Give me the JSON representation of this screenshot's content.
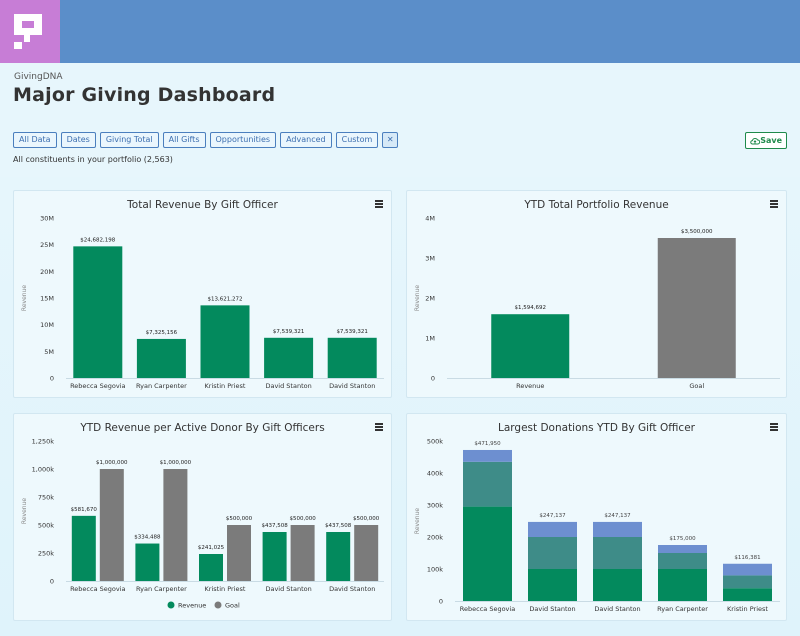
{
  "header": {
    "brand": "GivingDNA",
    "title": "Major Giving Dashboard",
    "filters": [
      "All Data",
      "Dates",
      "Giving Total",
      "All Gifts",
      "Opportunities",
      "Advanced",
      "Custom"
    ],
    "clear_label": "✕",
    "save_label": "Save",
    "subtitle": "All constituents in your portfolio (2,563)"
  },
  "colors": {
    "green": "#038a5d",
    "gray": "#7b7b7b",
    "blue": "#6d8fd0",
    "teal": "#3e8c88"
  },
  "chart_data": [
    {
      "type": "bar",
      "title": "Total Revenue By Gift Officer",
      "ylabel": "Revenue",
      "categories": [
        "Rebecca Segovia",
        "Ryan Carpenter",
        "Kristin Priest",
        "David Stanton",
        "David Stanton"
      ],
      "values": [
        24682198,
        7325156,
        13621272,
        7539321,
        7539321
      ],
      "data_labels": [
        "$24,682,198",
        "$7,325,156",
        "$13,621,272",
        "$7,539,321",
        "$7,539,321"
      ],
      "yticks": [
        "0",
        "5M",
        "10M",
        "15M",
        "20M",
        "25M",
        "30M"
      ],
      "ylim": [
        0,
        30000000
      ]
    },
    {
      "type": "bar",
      "title": "YTD Total Portfolio Revenue",
      "ylabel": "Revenue",
      "categories": [
        "Revenue",
        "Goal"
      ],
      "values": [
        1594692,
        3500000
      ],
      "data_labels": [
        "$1,594,692",
        "$3,500,000"
      ],
      "yticks": [
        "0",
        "1M",
        "2M",
        "3M",
        "4M"
      ],
      "ylim": [
        0,
        4000000
      ]
    },
    {
      "type": "bar",
      "title": "YTD Revenue per Active Donor By Gift Officers",
      "ylabel": "Revenue",
      "categories": [
        "Rebecca Segovia",
        "Ryan Carpenter",
        "Kristin Priest",
        "David Stanton",
        "David Stanton"
      ],
      "series": [
        {
          "name": "Revenue",
          "values": [
            581670,
            334488,
            241025,
            437508,
            437508
          ],
          "data_labels": [
            "$581,670",
            "$334,488",
            "$241,025",
            "$437,508",
            "$437,508"
          ]
        },
        {
          "name": "Goal",
          "values": [
            1000000,
            1000000,
            500000,
            500000,
            500000
          ],
          "data_labels": [
            "$1,000,000",
            "$1,000,000",
            "$500,000",
            "$500,000",
            "$500,000"
          ]
        }
      ],
      "yticks": [
        "0",
        "250k",
        "500k",
        "750k",
        "1,000k",
        "1,250k"
      ],
      "ylim": [
        0,
        1250000
      ],
      "legend": "bottom"
    },
    {
      "type": "bar",
      "stacked": true,
      "title": "Largest Donations YTD By Gift Officer",
      "ylabel": "Revenue",
      "categories": [
        "Rebecca Segovia",
        "David Stanton",
        "David Stanton",
        "Ryan Carpenter",
        "Kristin Priest"
      ],
      "series": [
        {
          "values": [
            295000,
            100000,
            100000,
            100000,
            40000
          ]
        },
        {
          "values": [
            140000,
            100000,
            100000,
            50000,
            40000
          ]
        },
        {
          "values": [
            36950,
            47137,
            47137,
            25000,
            36381
          ]
        }
      ],
      "data_labels": [
        "$471,950",
        "$247,137",
        "$247,137",
        "$175,000",
        "$116,381"
      ],
      "yticks": [
        "0",
        "100k",
        "200k",
        "300k",
        "400k",
        "500k"
      ],
      "ylim": [
        0,
        500000
      ]
    }
  ]
}
